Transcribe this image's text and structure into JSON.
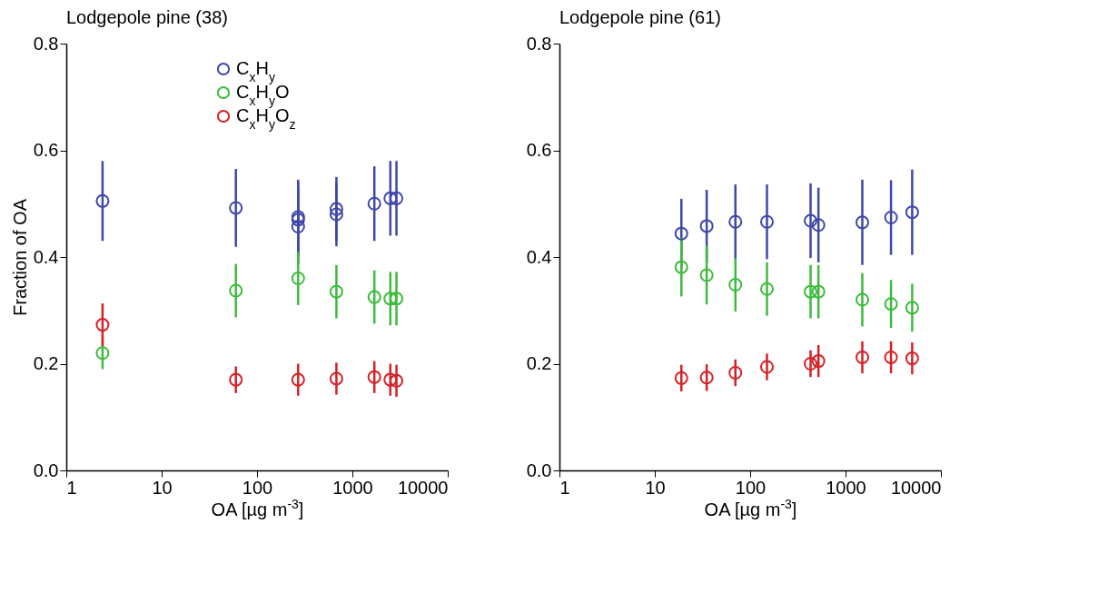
{
  "chart_data": [
    {
      "type": "scatter",
      "title": "Lodgepole pine (38)",
      "xlabel": "OA [µg m$^{-3}$]",
      "ylabel": "Fraction of OA",
      "log": "x",
      "xlim": [
        1,
        10000
      ],
      "xticks": [
        1,
        10,
        100,
        1000,
        10000
      ],
      "ylim": [
        0,
        0.8
      ],
      "yticks": [
        {
          "value": 0,
          "label": "0.0"
        },
        0.2,
        0.4,
        0.6,
        0.8
      ],
      "grid": false,
      "legend": "top right",
      "marker": "circle",
      "series": [
        {
          "name": "C$_{x}$H$_{y}$",
          "color": "#3f48a8",
          "x": [
            2.4,
            60,
            270,
            270,
            270,
            680,
            680,
            1700,
            2500,
            2900
          ],
          "values": [
            0.505,
            0.492,
            0.475,
            0.457,
            0.47,
            0.49,
            0.48,
            0.5,
            0.51,
            0.51
          ],
          "errors": [
            0.075,
            0.073,
            0.07,
            0.07,
            0.07,
            0.06,
            0.06,
            0.07,
            0.07,
            0.07
          ]
        },
        {
          "name": "C$_{x}$H$_{y}$O",
          "color": "#3dbb3d",
          "x": [
            2.4,
            60,
            270,
            680,
            1700,
            2500,
            2900
          ],
          "values": [
            0.22,
            0.337,
            0.36,
            0.335,
            0.325,
            0.322,
            0.322
          ],
          "errors": [
            0.03,
            0.05,
            0.05,
            0.05,
            0.05,
            0.05,
            0.05
          ]
        },
        {
          "name": "C$_{x}$H$_{y}$O$_{z}$",
          "color": "#d62027",
          "x": [
            2.4,
            60,
            270,
            680,
            1700,
            2500,
            2900
          ],
          "values": [
            0.273,
            0.17,
            0.17,
            0.172,
            0.175,
            0.17,
            0.168
          ],
          "errors": [
            0.04,
            0.025,
            0.03,
            0.03,
            0.03,
            0.03,
            0.03
          ]
        }
      ]
    },
    {
      "type": "scatter",
      "title": "Lodgepole pine (61)",
      "xlabel": "OA [µg m$^{-3}$]",
      "log": "x",
      "xlim": [
        1,
        10000
      ],
      "xticks": [
        1,
        10,
        100,
        1000,
        10000
      ],
      "ylim": [
        0,
        0.8
      ],
      "yticks": [
        {
          "value": 0,
          "label": "0.0"
        },
        0.2,
        0.4,
        0.6,
        0.8
      ],
      "grid": false,
      "marker": "circle",
      "series": [
        {
          "color": "#3f48a8",
          "x": [
            19,
            35,
            70,
            150,
            430,
            520,
            1500,
            3000,
            5000
          ],
          "values": [
            0.444,
            0.458,
            0.466,
            0.466,
            0.468,
            0.46,
            0.465,
            0.474,
            0.484
          ],
          "errors": [
            0.065,
            0.068,
            0.07,
            0.07,
            0.07,
            0.07,
            0.08,
            0.07,
            0.08
          ]
        },
        {
          "color": "#3dbb3d",
          "x": [
            19,
            35,
            70,
            150,
            430,
            520,
            1500,
            3000,
            5000
          ],
          "values": [
            0.381,
            0.366,
            0.348,
            0.34,
            0.335,
            0.335,
            0.32,
            0.312,
            0.305
          ],
          "errors": [
            0.055,
            0.055,
            0.05,
            0.05,
            0.05,
            0.05,
            0.05,
            0.045,
            0.045
          ]
        },
        {
          "color": "#d62027",
          "x": [
            19,
            35,
            70,
            150,
            430,
            520,
            1500,
            3000,
            5000
          ],
          "values": [
            0.173,
            0.174,
            0.183,
            0.194,
            0.2,
            0.205,
            0.212,
            0.212,
            0.21
          ],
          "errors": [
            0.025,
            0.025,
            0.025,
            0.025,
            0.025,
            0.03,
            0.03,
            0.03,
            0.03
          ]
        }
      ]
    }
  ]
}
